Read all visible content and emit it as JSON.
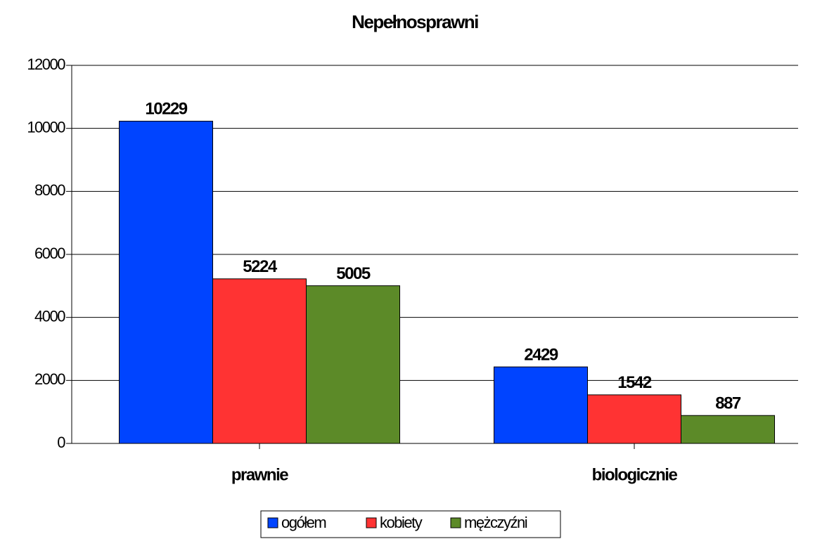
{
  "chart_data": {
    "type": "bar",
    "title": "Nepełnosprawni",
    "categories": [
      "prawnie",
      "biologicznie"
    ],
    "series": [
      {
        "name": "ogółem",
        "color": "#0044ff",
        "values": [
          10229,
          2429
        ]
      },
      {
        "name": "kobiety",
        "color": "#ff3333",
        "values": [
          5224,
          1542
        ]
      },
      {
        "name": "mężczyźni",
        "color": "#5c8a28",
        "values": [
          5005,
          887
        ]
      }
    ],
    "ylim": [
      0,
      12000
    ],
    "yticks": [
      0,
      2000,
      4000,
      6000,
      8000,
      10000,
      12000
    ],
    "grid": true,
    "legend": "bottom"
  }
}
